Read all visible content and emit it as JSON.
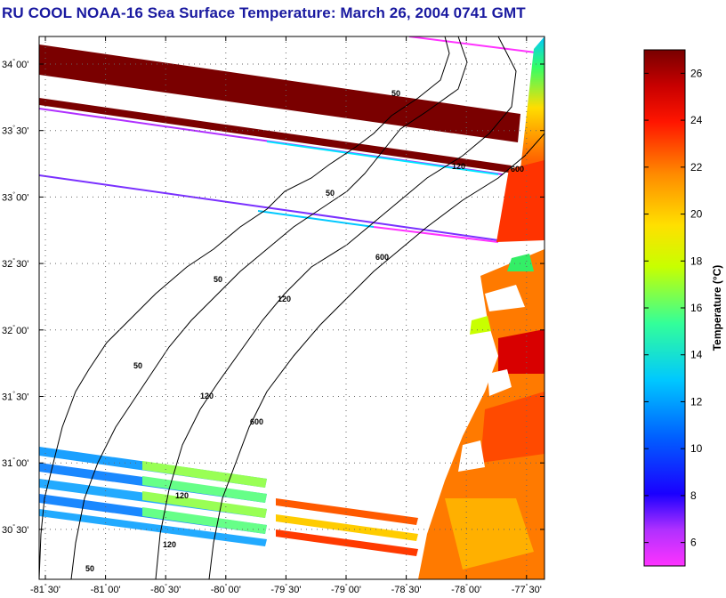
{
  "title": "RU COOL  NOAA-16  Sea Surface Temperature:  March 26, 2004 0741 GMT",
  "map": {
    "lat_ticks": [
      {
        "label": "34",
        "min": "00'",
        "lat": 34.0
      },
      {
        "label": "33",
        "min": "30'",
        "lat": 33.5
      },
      {
        "label": "33",
        "min": "00'",
        "lat": 33.0
      },
      {
        "label": "32",
        "min": "30'",
        "lat": 32.5
      },
      {
        "label": "32",
        "min": "00'",
        "lat": 32.0
      },
      {
        "label": "31",
        "min": "30'",
        "lat": 31.5
      },
      {
        "label": "31",
        "min": "00'",
        "lat": 31.0
      },
      {
        "label": "30",
        "min": "30'",
        "lat": 30.5
      }
    ],
    "lon_ticks": [
      {
        "label": "-81",
        "min": "30'",
        "lon": -81.5
      },
      {
        "label": "-81",
        "min": "00'",
        "lon": -81.0
      },
      {
        "label": "-80",
        "min": "30'",
        "lon": -80.5
      },
      {
        "label": "-80",
        "min": "00'",
        "lon": -80.0
      },
      {
        "label": "-79",
        "min": "30'",
        "lon": -79.5
      },
      {
        "label": "-79",
        "min": "00'",
        "lon": -79.0
      },
      {
        "label": "-78",
        "min": "30'",
        "lon": -78.5
      },
      {
        "label": "-78",
        "min": "00'",
        "lon": -78.0
      },
      {
        "label": "-77",
        "min": "30'",
        "lon": -77.5
      }
    ],
    "contour_labels": [
      "50",
      "50",
      "50",
      "50",
      "50",
      "120",
      "120",
      "120",
      "120",
      "120",
      "600",
      "600",
      "600"
    ]
  },
  "colorbar": {
    "title": "Temperature (°C)",
    "ticks": [
      "26",
      "24",
      "22",
      "20",
      "18",
      "16",
      "14",
      "12",
      "10",
      "8",
      "6"
    ],
    "min": 5,
    "max": 27,
    "colors": [
      "#ff33ff",
      "#8f32ff",
      "#0000ff",
      "#0088ff",
      "#00e5ff",
      "#33ff99",
      "#d2ff00",
      "#ffe600",
      "#ff8c00",
      "#ff1a00",
      "#7a0000"
    ]
  }
}
